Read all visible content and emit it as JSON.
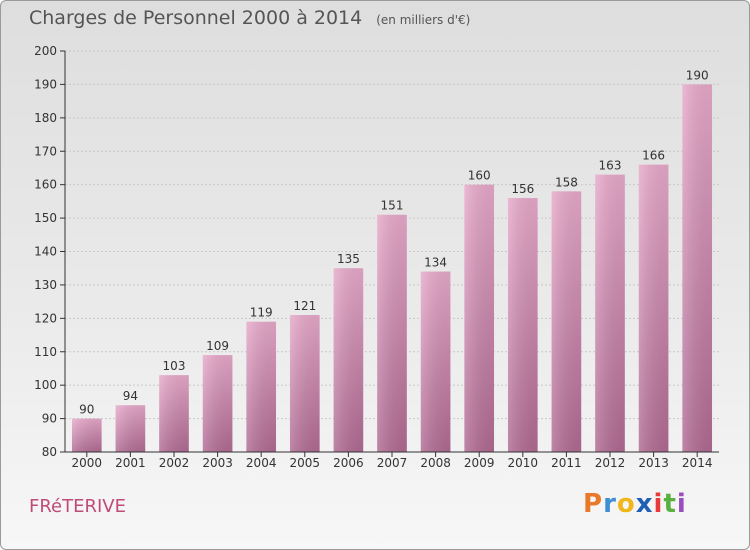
{
  "title": "Charges de Personnel 2000 à 2014",
  "subtitle": "(en milliers d'€)",
  "commune": "FRéTERIVE",
  "logo": {
    "letters": [
      "P",
      "r",
      "o",
      "x",
      "i",
      "t",
      "i"
    ],
    "colors": [
      "#e8782a",
      "#3e8fd1",
      "#f0b71c",
      "#1f5fb5",
      "#e83a3a",
      "#5ab040",
      "#9a4cc0"
    ]
  },
  "colors": {
    "bar_top": "#e7a9ca",
    "bar_bottom": "#b06a92",
    "axis": "#333333",
    "grid": "#c8c8c8"
  },
  "chart_data": {
    "type": "bar",
    "categories": [
      "2000",
      "2001",
      "2002",
      "2003",
      "2004",
      "2005",
      "2006",
      "2007",
      "2008",
      "2009",
      "2010",
      "2011",
      "2012",
      "2013",
      "2014"
    ],
    "values": [
      90,
      94,
      103,
      109,
      119,
      121,
      135,
      151,
      134,
      160,
      156,
      158,
      163,
      166,
      190
    ],
    "ylim": [
      80,
      200
    ],
    "yticks": [
      80,
      90,
      100,
      110,
      120,
      130,
      140,
      150,
      160,
      170,
      180,
      190,
      200
    ],
    "grid": true,
    "data_labels": true
  }
}
